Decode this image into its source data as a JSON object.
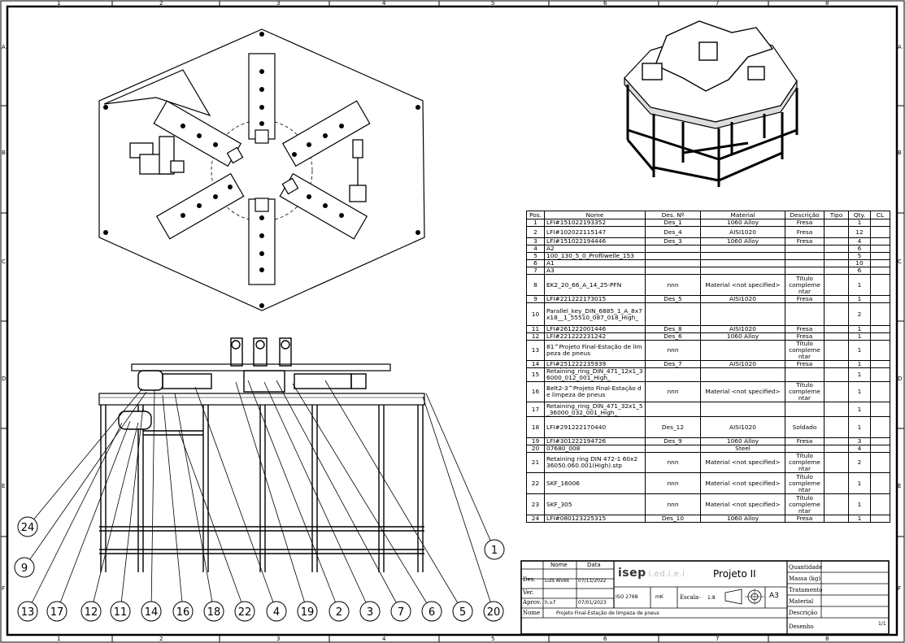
{
  "grid": {
    "columns": [
      "1",
      "2",
      "3",
      "4",
      "5",
      "6",
      "7",
      "8"
    ],
    "rows": [
      "A",
      "B",
      "C",
      "D",
      "E",
      "F"
    ]
  },
  "bom": {
    "headers": [
      "Pos.",
      "Nome",
      "Des. Nº",
      "Material",
      "Descrição",
      "Tipo",
      "Qty.",
      "CL"
    ],
    "rows": [
      {
        "pos": "1",
        "nome": "LFI#151022193352",
        "des": "Des_1",
        "mat": "1060 Alloy",
        "descr": "Fresa",
        "qty": "1"
      },
      {
        "pos": "2",
        "nome": "LFI#102022115147",
        "des": "Des_4",
        "mat": "AISI1020",
        "descr": "Fresa",
        "qty": "12"
      },
      {
        "pos": "3",
        "nome": "LFI#151022194446",
        "des": "Des_3",
        "mat": "1060 Alloy",
        "descr": "Fresa",
        "qty": "4"
      },
      {
        "pos": "4",
        "nome": "A2",
        "des": "",
        "mat": "",
        "descr": "",
        "qty": "6"
      },
      {
        "pos": "5",
        "nome": "100_130_5_0_Profilwelle_153",
        "des": "",
        "mat": "",
        "descr": "",
        "qty": "5"
      },
      {
        "pos": "6",
        "nome": "A1",
        "des": "",
        "mat": "",
        "descr": "",
        "qty": "10"
      },
      {
        "pos": "7",
        "nome": "A3",
        "des": "",
        "mat": "",
        "descr": "",
        "qty": "6"
      },
      {
        "pos": "8",
        "nome": "EK2_20_66_A_14_25-PFN",
        "des": "nnn",
        "mat": "Material <not specified>",
        "descr": "Título compleme ntar",
        "qty": "1"
      },
      {
        "pos": "9",
        "nome": "LFI#221222173015",
        "des": "Des_5",
        "mat": "AISI1020",
        "descr": "Fresa",
        "qty": "1"
      },
      {
        "pos": "10",
        "nome": "Parallel_key_DIN_6885_1_A_8x7x18__1_55510_087_018_High_",
        "des": "",
        "mat": "",
        "descr": "",
        "qty": "2"
      },
      {
        "pos": "11",
        "nome": "LFI#261222001446",
        "des": "Des_8",
        "mat": "AISI1020",
        "descr": "Fresa",
        "qty": "1"
      },
      {
        "pos": "12",
        "nome": "LFI#221222231242",
        "des": "Des_6",
        "mat": "1060 Alloy",
        "descr": "Fresa",
        "qty": "1"
      },
      {
        "pos": "13",
        "nome": "81^Projeto Final-Estação de limpeza de pneus",
        "des": "nnn",
        "mat": "",
        "descr": "Título compleme ntar",
        "qty": "1"
      },
      {
        "pos": "14",
        "nome": "LFI#251222235939",
        "des": "Des_7",
        "mat": "AISI1020",
        "descr": "Fresa",
        "qty": "1"
      },
      {
        "pos": "15",
        "nome": "Retaining_ring_DIN_471_12x1_36000_012_001_High_",
        "des": "",
        "mat": "",
        "descr": "",
        "qty": "1"
      },
      {
        "pos": "16",
        "nome": "Belt2-3^Projeto Final-Estação de limpeza de pneus",
        "des": "nnn",
        "mat": "Material <not specified>",
        "descr": "Título compleme ntar",
        "qty": "1"
      },
      {
        "pos": "17",
        "nome": "Retaining_ring_DIN_471_32x1_5_36000_032_001_High_",
        "des": "",
        "mat": "",
        "descr": "",
        "qty": "1"
      },
      {
        "pos": "18",
        "nome": "LFI#291222170440",
        "des": "Des_12",
        "mat": "AISI1020",
        "descr": "Soldado",
        "qty": "1"
      },
      {
        "pos": "19",
        "nome": "LFI#301222194726",
        "des": "Des_9",
        "mat": "1060 Alloy",
        "descr": "Fresa",
        "qty": "3"
      },
      {
        "pos": "20",
        "nome": "07680_008",
        "des": "",
        "mat": "Steel",
        "descr": "",
        "qty": "4"
      },
      {
        "pos": "21",
        "nome": "Retaining ring DIN 472-1 60x2 36050.060.001(High).stp",
        "des": "nnn",
        "mat": "Material <not specified>",
        "descr": "Título compleme ntar",
        "qty": "2"
      },
      {
        "pos": "22",
        "nome": "SKF_16006",
        "des": "nnn",
        "mat": "Material <not specified>",
        "descr": "Título compleme ntar",
        "qty": "1"
      },
      {
        "pos": "23",
        "nome": "SKF_305",
        "des": "nnn",
        "mat": "Material <not specified>",
        "descr": "Título compleme ntar",
        "qty": "1"
      },
      {
        "pos": "24",
        "nome": "LFI#080123225315",
        "des": "Des_10",
        "mat": "1060 Alloy",
        "descr": "Fresa",
        "qty": "1"
      }
    ]
  },
  "title_block": {
    "col_nome": "Nome",
    "col_data": "Data",
    "row_des": "Des.",
    "row_ver": "Ver.",
    "row_aprov": "Aprov.",
    "des_nome": "Luís Alves",
    "des_data": "07/11/2022",
    "aprov_nome": "h.v.f",
    "aprov_data": "07/01/2023",
    "logo_main": "isep",
    "logo_sub": "l.ed.i.e.i",
    "project": "Projeto II",
    "standard": "ISO 2768",
    "tolerance": "mK",
    "scale_label": "Escala-",
    "scale_value": "1:8",
    "paper": "A3",
    "nome_label": "Nome",
    "nome_value": "Projeto Final-Estação de limpeza de pneus",
    "quantidade": "Quantidade",
    "massa": "Massa (kg)",
    "tratamento": "Tratamento",
    "material": "Material",
    "descricao": "Descrição",
    "desenho": "Desenho",
    "sheet": "1/1"
  },
  "balloons": [
    "24",
    "9",
    "13",
    "17",
    "12",
    "11",
    "14",
    "16",
    "18",
    "22",
    "4",
    "19",
    "2",
    "3",
    "7",
    "6",
    "5",
    "20",
    "1"
  ]
}
